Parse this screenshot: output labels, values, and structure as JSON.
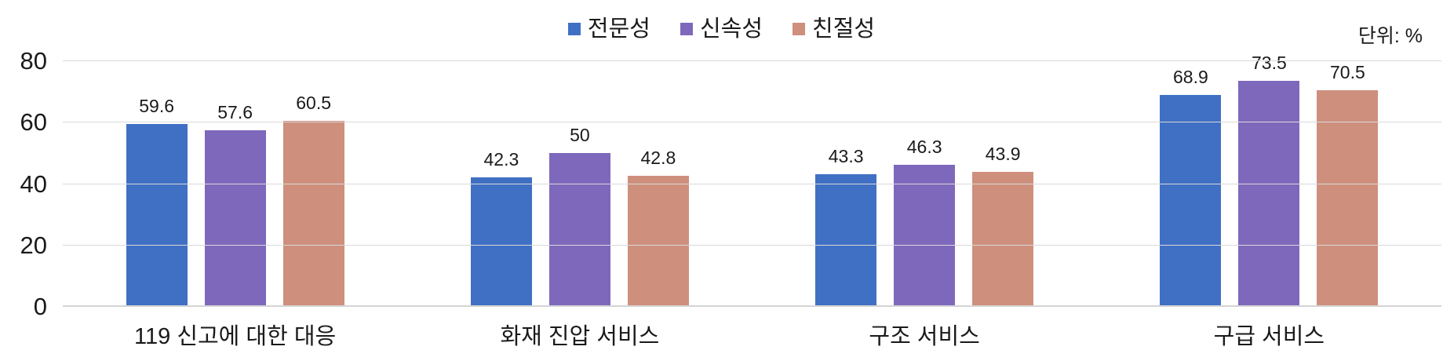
{
  "chart_data": {
    "type": "bar",
    "title": "",
    "unit": "단위: %",
    "categories": [
      "119 신고에 대한 대응",
      "화재 진압 서비스",
      "구조 서비스",
      "구급 서비스"
    ],
    "series": [
      {
        "name": "전문성",
        "color": "#4070c4",
        "values": [
          59.6,
          42.3,
          43.3,
          68.9
        ]
      },
      {
        "name": "신속성",
        "color": "#7d68bc",
        "values": [
          57.6,
          50,
          46.3,
          73.5
        ]
      },
      {
        "name": "친절성",
        "color": "#ce8f7d",
        "values": [
          60.5,
          42.8,
          43.9,
          70.5
        ]
      }
    ],
    "ylim": [
      0,
      80
    ],
    "yticks": [
      0,
      20,
      40,
      60,
      80
    ],
    "xlabel": "",
    "ylabel": "",
    "grid": "horizontal",
    "legend_position": "top-center",
    "data_labels": "above-bars",
    "colors": {
      "gridline": "#d9d9d9",
      "baseline": "#d4d4d4",
      "text": "#1a1a1a",
      "background": "#ffffff"
    }
  }
}
